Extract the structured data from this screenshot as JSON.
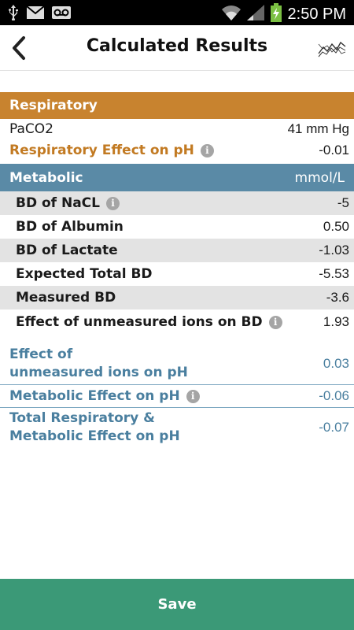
{
  "status_bar": {
    "time": "2:50 PM",
    "icons": [
      "usb-icon",
      "mail-icon",
      "voicemail-icon",
      "wifi-icon",
      "signal-icon",
      "battery-charging-icon"
    ]
  },
  "header": {
    "title": "Calculated Results",
    "back_icon": "chevron-left-icon",
    "graph_icon": "graph-icon"
  },
  "respiratory": {
    "heading": "Respiratory",
    "rows": [
      {
        "label": "PaCO2",
        "value": "41 mm Hg"
      },
      {
        "label": "Respiratory Effect on pH",
        "value": "-0.01"
      }
    ]
  },
  "metabolic": {
    "heading": "Metabolic",
    "unit": "mmol/L",
    "rows": [
      {
        "label": "BD of NaCL",
        "value": "-5"
      },
      {
        "label": "BD of Albumin",
        "value": "0.50"
      },
      {
        "label": "BD of Lactate",
        "value": "-1.03"
      },
      {
        "label": "Expected Total BD",
        "value": "-5.53"
      },
      {
        "label": "Measured BD",
        "value": "-3.6"
      },
      {
        "label": "Effect of unmeasured ions on BD",
        "value": "1.93"
      }
    ]
  },
  "summary": [
    {
      "label_line1": "Effect of",
      "label_line2": "unmeasured ions on pH",
      "value": "0.03"
    },
    {
      "label_line1": "Metabolic Effect on pH",
      "value": "-0.06"
    },
    {
      "label_line1": "Total Respiratory &",
      "label_line2": "Metabolic Effect on pH",
      "value": "-0.07"
    }
  ],
  "footer": {
    "save_label": "Save"
  },
  "colors": {
    "respiratory": "#c8832f",
    "metabolic": "#5a8aa6",
    "save": "#3b9977"
  }
}
